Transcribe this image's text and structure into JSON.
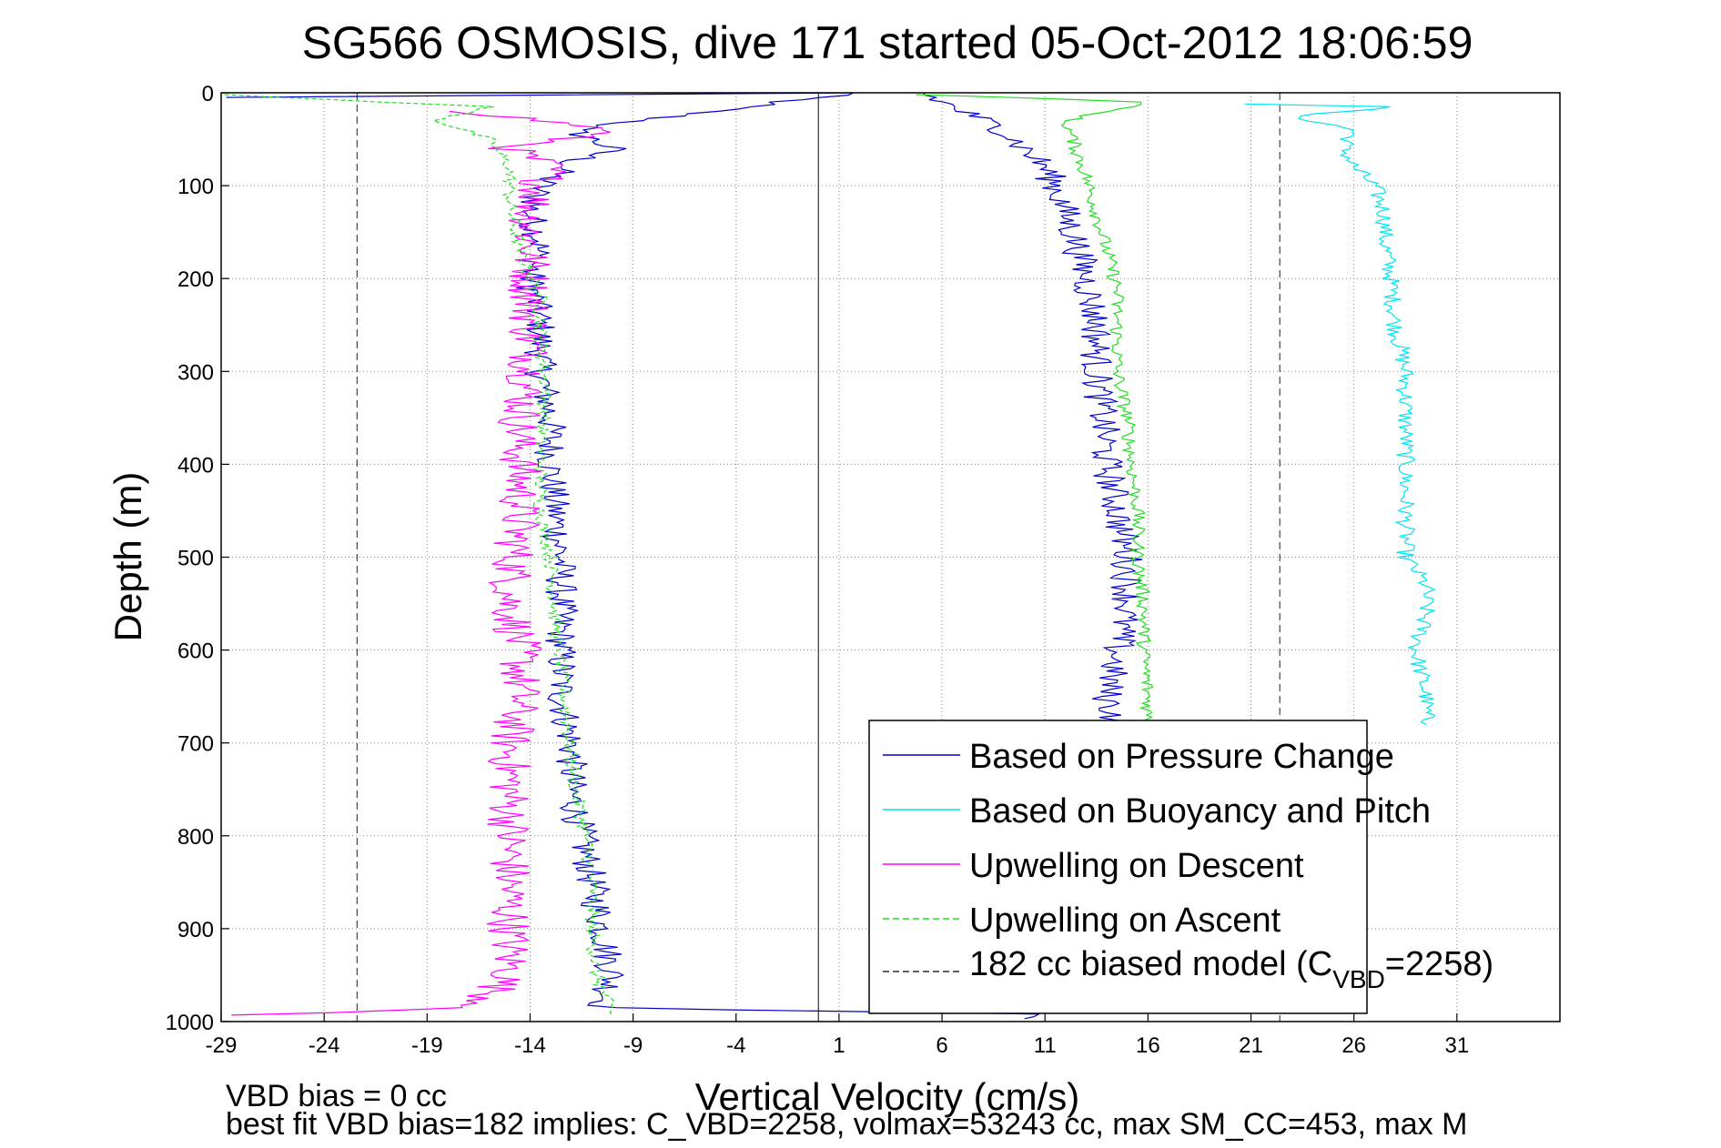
{
  "chart_data": {
    "type": "line",
    "title": "SG566 OSMOSIS, dive 171 started 05-Oct-2012 18:06:59",
    "xlabel": "Vertical Velocity (cm/s)",
    "ylabel": "Depth (m)",
    "xlim": [
      -29,
      36
    ],
    "ylim": [
      0,
      1000
    ],
    "y_reversed": true,
    "x_ticks": [
      -29,
      -24,
      -19,
      -14,
      -9,
      -4,
      1,
      6,
      11,
      16,
      21,
      26,
      31
    ],
    "y_ticks": [
      0,
      100,
      200,
      300,
      400,
      500,
      600,
      700,
      800,
      900,
      1000
    ],
    "grid": true,
    "legend_position": "bottom-right",
    "reference_lines": [
      {
        "x": 0,
        "style": "solid"
      },
      {
        "x": -22.4,
        "style": "dashed"
      },
      {
        "x": 22.4,
        "style": "dashed"
      }
    ],
    "series": [
      {
        "name": "Based on Pressure Change",
        "color": "#0000cc",
        "style": "solid",
        "points": [
          [
            -29,
            5
          ],
          [
            1.5,
            0
          ],
          [
            -12,
            40
          ],
          [
            -10,
            60
          ],
          [
            -12,
            75
          ],
          [
            -13.5,
            100
          ],
          [
            -14,
            130
          ],
          [
            -13.5,
            160
          ],
          [
            -14,
            200
          ],
          [
            -13.5,
            250
          ],
          [
            -13.5,
            300
          ],
          [
            -13,
            350
          ],
          [
            -13,
            400
          ],
          [
            -12.8,
            450
          ],
          [
            -12.5,
            500
          ],
          [
            -12.5,
            550
          ],
          [
            -12.5,
            600
          ],
          [
            -12.5,
            650
          ],
          [
            -12,
            700
          ],
          [
            -12,
            750
          ],
          [
            -11.5,
            800
          ],
          [
            -11,
            850
          ],
          [
            -10.5,
            900
          ],
          [
            -10,
            950
          ],
          [
            -10.5,
            985
          ],
          [
            10,
            992
          ],
          [
            10,
            997
          ]
        ]
      },
      {
        "name": "Based on Buoyancy and Pitch",
        "color": "#00e5ee",
        "style": "solid",
        "points": [
          [
            21,
            12
          ],
          [
            28,
            15
          ],
          [
            23,
            25
          ],
          [
            26,
            40
          ],
          [
            25.5,
            60
          ],
          [
            26,
            80
          ],
          [
            27,
            100
          ],
          [
            27.5,
            130
          ],
          [
            27.5,
            160
          ],
          [
            27.8,
            200
          ],
          [
            28,
            250
          ],
          [
            28.5,
            300
          ],
          [
            28.5,
            350
          ],
          [
            28.5,
            400
          ],
          [
            28.5,
            450
          ],
          [
            28.5,
            500
          ],
          [
            29.5,
            530
          ],
          [
            29.5,
            560
          ],
          [
            29,
            600
          ],
          [
            29.5,
            650
          ],
          [
            29.5,
            680
          ]
        ]
      },
      {
        "name": "Upwelling on Descent",
        "color": "#ff00ff",
        "style": "solid",
        "points": [
          [
            -17,
            20
          ],
          [
            -10,
            40
          ],
          [
            -15,
            60
          ],
          [
            -13,
            80
          ],
          [
            -13.5,
            100
          ],
          [
            -14,
            130
          ],
          [
            -14,
            160
          ],
          [
            -14,
            200
          ],
          [
            -14,
            250
          ],
          [
            -14,
            300
          ],
          [
            -14.5,
            350
          ],
          [
            -14.5,
            400
          ],
          [
            -14.5,
            450
          ],
          [
            -14.8,
            500
          ],
          [
            -15,
            550
          ],
          [
            -14.5,
            600
          ],
          [
            -14.5,
            650
          ],
          [
            -15,
            700
          ],
          [
            -15,
            750
          ],
          [
            -15,
            800
          ],
          [
            -15,
            850
          ],
          [
            -15,
            900
          ],
          [
            -15,
            950
          ],
          [
            -16.5,
            985
          ],
          [
            -28.5,
            993
          ]
        ]
      },
      {
        "name": "Upwelling on Ascent",
        "color": "#22dd22",
        "style": "dashed",
        "points": [
          [
            -29,
            2
          ],
          [
            -16,
            15
          ],
          [
            -18.5,
            30
          ],
          [
            -16,
            50
          ],
          [
            -15,
            80
          ],
          [
            -15,
            120
          ],
          [
            -14.5,
            170
          ],
          [
            -13.5,
            220
          ],
          [
            -13.5,
            270
          ],
          [
            -13.2,
            320
          ],
          [
            -13.5,
            380
          ],
          [
            -13.5,
            450
          ],
          [
            -13,
            500
          ],
          [
            -12.8,
            560
          ],
          [
            -12.5,
            620
          ],
          [
            -12.2,
            680
          ],
          [
            -11.8,
            750
          ],
          [
            -11.3,
            800
          ],
          [
            -11,
            850
          ],
          [
            -11,
            900
          ],
          [
            -10.8,
            950
          ],
          [
            -10,
            993
          ]
        ]
      },
      {
        "name": "182 cc biased model (C_VBD=2258)",
        "color": "#000000",
        "style": "dashed",
        "points": []
      }
    ],
    "right_panel_series": [
      {
        "name": "Based on Pressure Change",
        "color": "#0000cc",
        "points": [
          [
            5,
            0
          ],
          [
            7,
            20
          ],
          [
            9,
            40
          ],
          [
            10,
            60
          ],
          [
            11,
            80
          ],
          [
            11.5,
            100
          ],
          [
            12,
            130
          ],
          [
            12.5,
            160
          ],
          [
            13,
            200
          ],
          [
            13.5,
            250
          ],
          [
            13.5,
            300
          ],
          [
            13.8,
            350
          ],
          [
            14,
            400
          ],
          [
            14.5,
            450
          ],
          [
            15,
            500
          ],
          [
            15,
            550
          ],
          [
            14.5,
            600
          ],
          [
            14,
            650
          ],
          [
            14.5,
            680
          ]
        ]
      },
      {
        "name": "Upwelling on Ascent",
        "color": "#22dd22",
        "points": [
          [
            5,
            2
          ],
          [
            16,
            10
          ],
          [
            12,
            30
          ],
          [
            12.5,
            60
          ],
          [
            13,
            90
          ],
          [
            13.5,
            130
          ],
          [
            14,
            170
          ],
          [
            14.5,
            210
          ],
          [
            14.5,
            260
          ],
          [
            14.5,
            300
          ],
          [
            15,
            350
          ],
          [
            15.2,
            400
          ],
          [
            15.5,
            450
          ],
          [
            15.5,
            500
          ],
          [
            15.8,
            550
          ],
          [
            15.8,
            600
          ],
          [
            16,
            650
          ],
          [
            16,
            680
          ]
        ]
      }
    ],
    "legend": {
      "entries": [
        {
          "label": "Based on Pressure Change",
          "color": "#0000cc",
          "style": "solid"
        },
        {
          "label": "Based on Buoyancy and Pitch",
          "color": "#00e5ee",
          "style": "solid"
        },
        {
          "label": "Upwelling on Descent",
          "color": "#ff00ff",
          "style": "solid"
        },
        {
          "label": "Upwelling on Ascent",
          "color": "#22dd22",
          "style": "dashed"
        },
        {
          "label_main": "182 cc biased model (C",
          "label_sub": "VBD",
          "label_end": "=2258)",
          "color": "#000000",
          "style": "dashed"
        }
      ]
    },
    "annotations": [
      "VBD bias = 0 cc",
      "best fit VBD bias=182 implies: C_VBD=2258, volmax=53243 cc, max SM_CC=453, max M"
    ]
  }
}
